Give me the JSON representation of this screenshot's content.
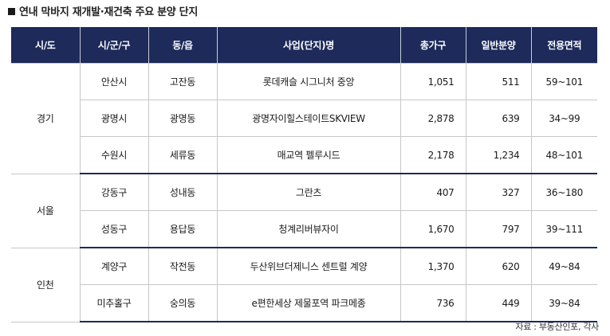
{
  "title": "연내 막바지 재개발·재건축 주요 분양 단지",
  "headers": [
    "시/도",
    "시/군/구",
    "동/읍",
    "사업(단지)명",
    "총가구",
    "일반분양",
    "전용면적"
  ],
  "groups": [
    {
      "region": "경기",
      "rows": [
        {
          "city": "안산시",
          "dong": "고잔동",
          "name": "롯데캐슬 시그니처 중앙",
          "total": "1,051",
          "general": "511",
          "area": "59~101"
        },
        {
          "city": "광명시",
          "dong": "광명동",
          "name": "광명자이힐스테이트SKVIEW",
          "total": "2,878",
          "general": "639",
          "area": "34~99"
        },
        {
          "city": "수원시",
          "dong": "세류동",
          "name": "매교역 펠루시드",
          "total": "2,178",
          "general": "1,234",
          "area": "48~101"
        }
      ]
    },
    {
      "region": "서울",
      "rows": [
        {
          "city": "강동구",
          "dong": "성내동",
          "name": "그란츠",
          "total": "407",
          "general": "327",
          "area": "36~180"
        },
        {
          "city": "성동구",
          "dong": "용답동",
          "name": "청계리버뷰자이",
          "total": "1,670",
          "general": "797",
          "area": "39~111"
        }
      ]
    },
    {
      "region": "인천",
      "rows": [
        {
          "city": "계양구",
          "dong": "작전동",
          "name": "두산위브더제니스 센트럴 계양",
          "total": "1,370",
          "general": "620",
          "area": "49~84"
        },
        {
          "city": "미추홀구",
          "dong": "숭의동",
          "name": "e편한세상 제물포역 파크메종",
          "total": "736",
          "general": "449",
          "area": "39~84"
        }
      ]
    }
  ],
  "source": "자료 : 부동산인포, 각사",
  "colors": {
    "header_bg": "#1d2a5a",
    "header_text": "#ffffff",
    "border": "#c7c7c7"
  }
}
